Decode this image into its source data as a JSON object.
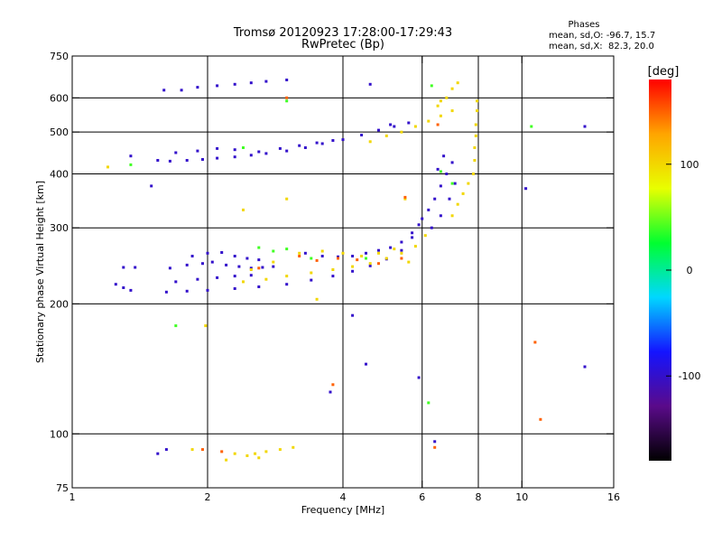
{
  "chart_data": {
    "type": "scatter",
    "title": "Tromsø 20120923 17:28:00-17:29:43",
    "subtitle": "RwPretec (Bp)",
    "xlabel": "Frequency [MHz]",
    "ylabel": "Stationary phase Virtual Height [km]",
    "x_scale": "log",
    "y_scale": "log",
    "xlim": [
      1,
      16
    ],
    "ylim": [
      75,
      750
    ],
    "x_ticks": [
      1,
      2,
      4,
      6,
      8,
      10,
      16
    ],
    "y_ticks": [
      75,
      100,
      200,
      300,
      400,
      500,
      600,
      750
    ],
    "x_gridlines": [
      2,
      4,
      6,
      8,
      10
    ],
    "y_gridlines": [
      100,
      200,
      300,
      400,
      500,
      600
    ],
    "grid": true,
    "stats": {
      "header": "Phases",
      "line_o": "mean, sd,O: -96.7, 15.7",
      "line_x": "mean, sd,X:  82.3, 20.0"
    },
    "colorbar": {
      "label": "[deg]",
      "min": -180,
      "max": 180,
      "ticks": [
        -100,
        0,
        100
      ],
      "colors": [
        "#000000",
        "#5a0a8a",
        "#1414ff",
        "#00d8ff",
        "#00ff30",
        "#e8ff00",
        "#ffa500",
        "#ff0000"
      ]
    },
    "series": [
      {
        "phase": -100,
        "points": [
          [
            1.25,
            222
          ],
          [
            1.3,
            218
          ],
          [
            1.35,
            215
          ],
          [
            1.62,
            213
          ],
          [
            1.8,
            214
          ],
          [
            2.0,
            215
          ],
          [
            2.3,
            217
          ],
          [
            2.6,
            219
          ],
          [
            3.0,
            222
          ],
          [
            3.4,
            227
          ],
          [
            3.8,
            232
          ],
          [
            4.2,
            238
          ],
          [
            4.6,
            245
          ],
          [
            5.0,
            254
          ],
          [
            5.4,
            266
          ],
          [
            5.7,
            285
          ],
          [
            5.9,
            305
          ],
          [
            1.3,
            243
          ],
          [
            1.38,
            243
          ],
          [
            1.7,
            225
          ],
          [
            1.9,
            228
          ],
          [
            2.1,
            230
          ],
          [
            2.3,
            232
          ],
          [
            2.5,
            233
          ],
          [
            1.65,
            242
          ],
          [
            1.8,
            246
          ],
          [
            1.95,
            248
          ],
          [
            2.05,
            250
          ],
          [
            2.2,
            246
          ],
          [
            2.35,
            244
          ],
          [
            2.5,
            242
          ],
          [
            2.65,
            243
          ],
          [
            2.8,
            244
          ],
          [
            1.85,
            258
          ],
          [
            2.0,
            262
          ],
          [
            2.15,
            263
          ],
          [
            2.3,
            258
          ],
          [
            2.45,
            255
          ],
          [
            2.6,
            253
          ],
          [
            3.3,
            262
          ],
          [
            3.6,
            258
          ],
          [
            3.9,
            257
          ],
          [
            4.2,
            258
          ],
          [
            4.5,
            262
          ],
          [
            4.8,
            266
          ],
          [
            5.1,
            270
          ],
          [
            5.4,
            278
          ],
          [
            5.7,
            292
          ],
          [
            6.0,
            315
          ],
          [
            6.2,
            330
          ],
          [
            6.4,
            350
          ],
          [
            6.6,
            375
          ],
          [
            6.8,
            400
          ],
          [
            7.0,
            425
          ],
          [
            6.3,
            300
          ],
          [
            6.6,
            320
          ],
          [
            6.9,
            350
          ],
          [
            7.1,
            380
          ],
          [
            6.5,
            410
          ],
          [
            6.7,
            440
          ],
          [
            1.35,
            440
          ],
          [
            1.55,
            430
          ],
          [
            1.65,
            428
          ],
          [
            1.8,
            430
          ],
          [
            1.95,
            432
          ],
          [
            2.1,
            435
          ],
          [
            2.3,
            438
          ],
          [
            2.5,
            442
          ],
          [
            2.7,
            446
          ],
          [
            3.0,
            452
          ],
          [
            3.3,
            460
          ],
          [
            3.6,
            470
          ],
          [
            4.0,
            480
          ],
          [
            4.4,
            492
          ],
          [
            4.8,
            505
          ],
          [
            5.2,
            515
          ],
          [
            5.6,
            525
          ],
          [
            1.7,
            448
          ],
          [
            1.9,
            452
          ],
          [
            2.1,
            458
          ],
          [
            2.3,
            455
          ],
          [
            2.6,
            450
          ],
          [
            2.9,
            458
          ],
          [
            3.2,
            465
          ],
          [
            3.5,
            472
          ],
          [
            3.8,
            478
          ],
          [
            1.6,
            625
          ],
          [
            1.75,
            625
          ],
          [
            1.9,
            635
          ],
          [
            2.1,
            640
          ],
          [
            2.3,
            645
          ],
          [
            2.5,
            650
          ],
          [
            2.7,
            655
          ],
          [
            3.0,
            660
          ],
          [
            1.55,
            90
          ],
          [
            1.62,
            92
          ],
          [
            1.5,
            375
          ],
          [
            5.1,
            520
          ],
          [
            4.6,
            645
          ],
          [
            13.8,
            515
          ],
          [
            13.8,
            143
          ],
          [
            10.2,
            370
          ],
          [
            4.2,
            188
          ],
          [
            5.9,
            135
          ],
          [
            6.4,
            96
          ],
          [
            3.75,
            125
          ],
          [
            4.5,
            145
          ]
        ]
      },
      {
        "phase": 100,
        "points": [
          [
            2.4,
            225
          ],
          [
            2.7,
            228
          ],
          [
            3.0,
            232
          ],
          [
            3.4,
            236
          ],
          [
            3.8,
            240
          ],
          [
            4.2,
            244
          ],
          [
            4.6,
            248
          ],
          [
            5.0,
            255
          ],
          [
            5.4,
            262
          ],
          [
            5.8,
            272
          ],
          [
            6.1,
            288
          ],
          [
            2.5,
            240
          ],
          [
            2.8,
            250
          ],
          [
            3.2,
            262
          ],
          [
            3.6,
            265
          ],
          [
            4.0,
            262
          ],
          [
            4.4,
            258
          ],
          [
            4.8,
            262
          ],
          [
            5.2,
            268
          ],
          [
            4.6,
            475
          ],
          [
            5.0,
            490
          ],
          [
            5.4,
            500
          ],
          [
            5.8,
            515
          ],
          [
            6.2,
            530
          ],
          [
            6.6,
            545
          ],
          [
            7.0,
            560
          ],
          [
            6.8,
            600
          ],
          [
            7.0,
            630
          ],
          [
            7.2,
            650
          ],
          [
            6.5,
            575
          ],
          [
            6.6,
            590
          ],
          [
            7.0,
            320
          ],
          [
            7.2,
            340
          ],
          [
            7.4,
            360
          ],
          [
            7.6,
            380
          ],
          [
            7.8,
            400
          ],
          [
            7.85,
            430
          ],
          [
            7.85,
            460
          ],
          [
            7.9,
            490
          ],
          [
            7.9,
            520
          ],
          [
            7.95,
            560
          ],
          [
            7.95,
            590
          ],
          [
            2.3,
            90
          ],
          [
            2.45,
            89
          ],
          [
            2.55,
            90
          ],
          [
            2.7,
            91
          ],
          [
            2.9,
            92
          ],
          [
            3.1,
            93
          ],
          [
            2.2,
            87
          ],
          [
            2.6,
            88
          ],
          [
            1.85,
            92
          ],
          [
            1.2,
            415
          ],
          [
            3.0,
            350
          ],
          [
            2.4,
            330
          ],
          [
            1.98,
            178
          ],
          [
            3.5,
            205
          ],
          [
            5.6,
            250
          ],
          [
            5.5,
            350
          ]
        ]
      },
      {
        "phase": 150,
        "points": [
          [
            3.2,
            258
          ],
          [
            3.5,
            252
          ],
          [
            3.9,
            255
          ],
          [
            4.3,
            253
          ],
          [
            4.8,
            248
          ],
          [
            5.4,
            255
          ],
          [
            6.5,
            520
          ],
          [
            2.6,
            242
          ],
          [
            1.95,
            92
          ],
          [
            2.15,
            91
          ],
          [
            10.7,
            163
          ],
          [
            11.0,
            108
          ],
          [
            6.4,
            93
          ],
          [
            3.8,
            130
          ],
          [
            3.0,
            600
          ],
          [
            5.5,
            353
          ]
        ]
      },
      {
        "phase": 40,
        "points": [
          [
            2.6,
            270
          ],
          [
            2.8,
            265
          ],
          [
            3.0,
            268
          ],
          [
            3.4,
            255
          ],
          [
            4.5,
            255
          ],
          [
            6.3,
            640
          ],
          [
            7.0,
            380
          ],
          [
            2.4,
            460
          ],
          [
            1.35,
            420
          ],
          [
            6.2,
            118
          ],
          [
            10.5,
            515
          ],
          [
            1.7,
            178
          ],
          [
            3.0,
            590
          ],
          [
            6.6,
            405
          ]
        ]
      }
    ]
  }
}
